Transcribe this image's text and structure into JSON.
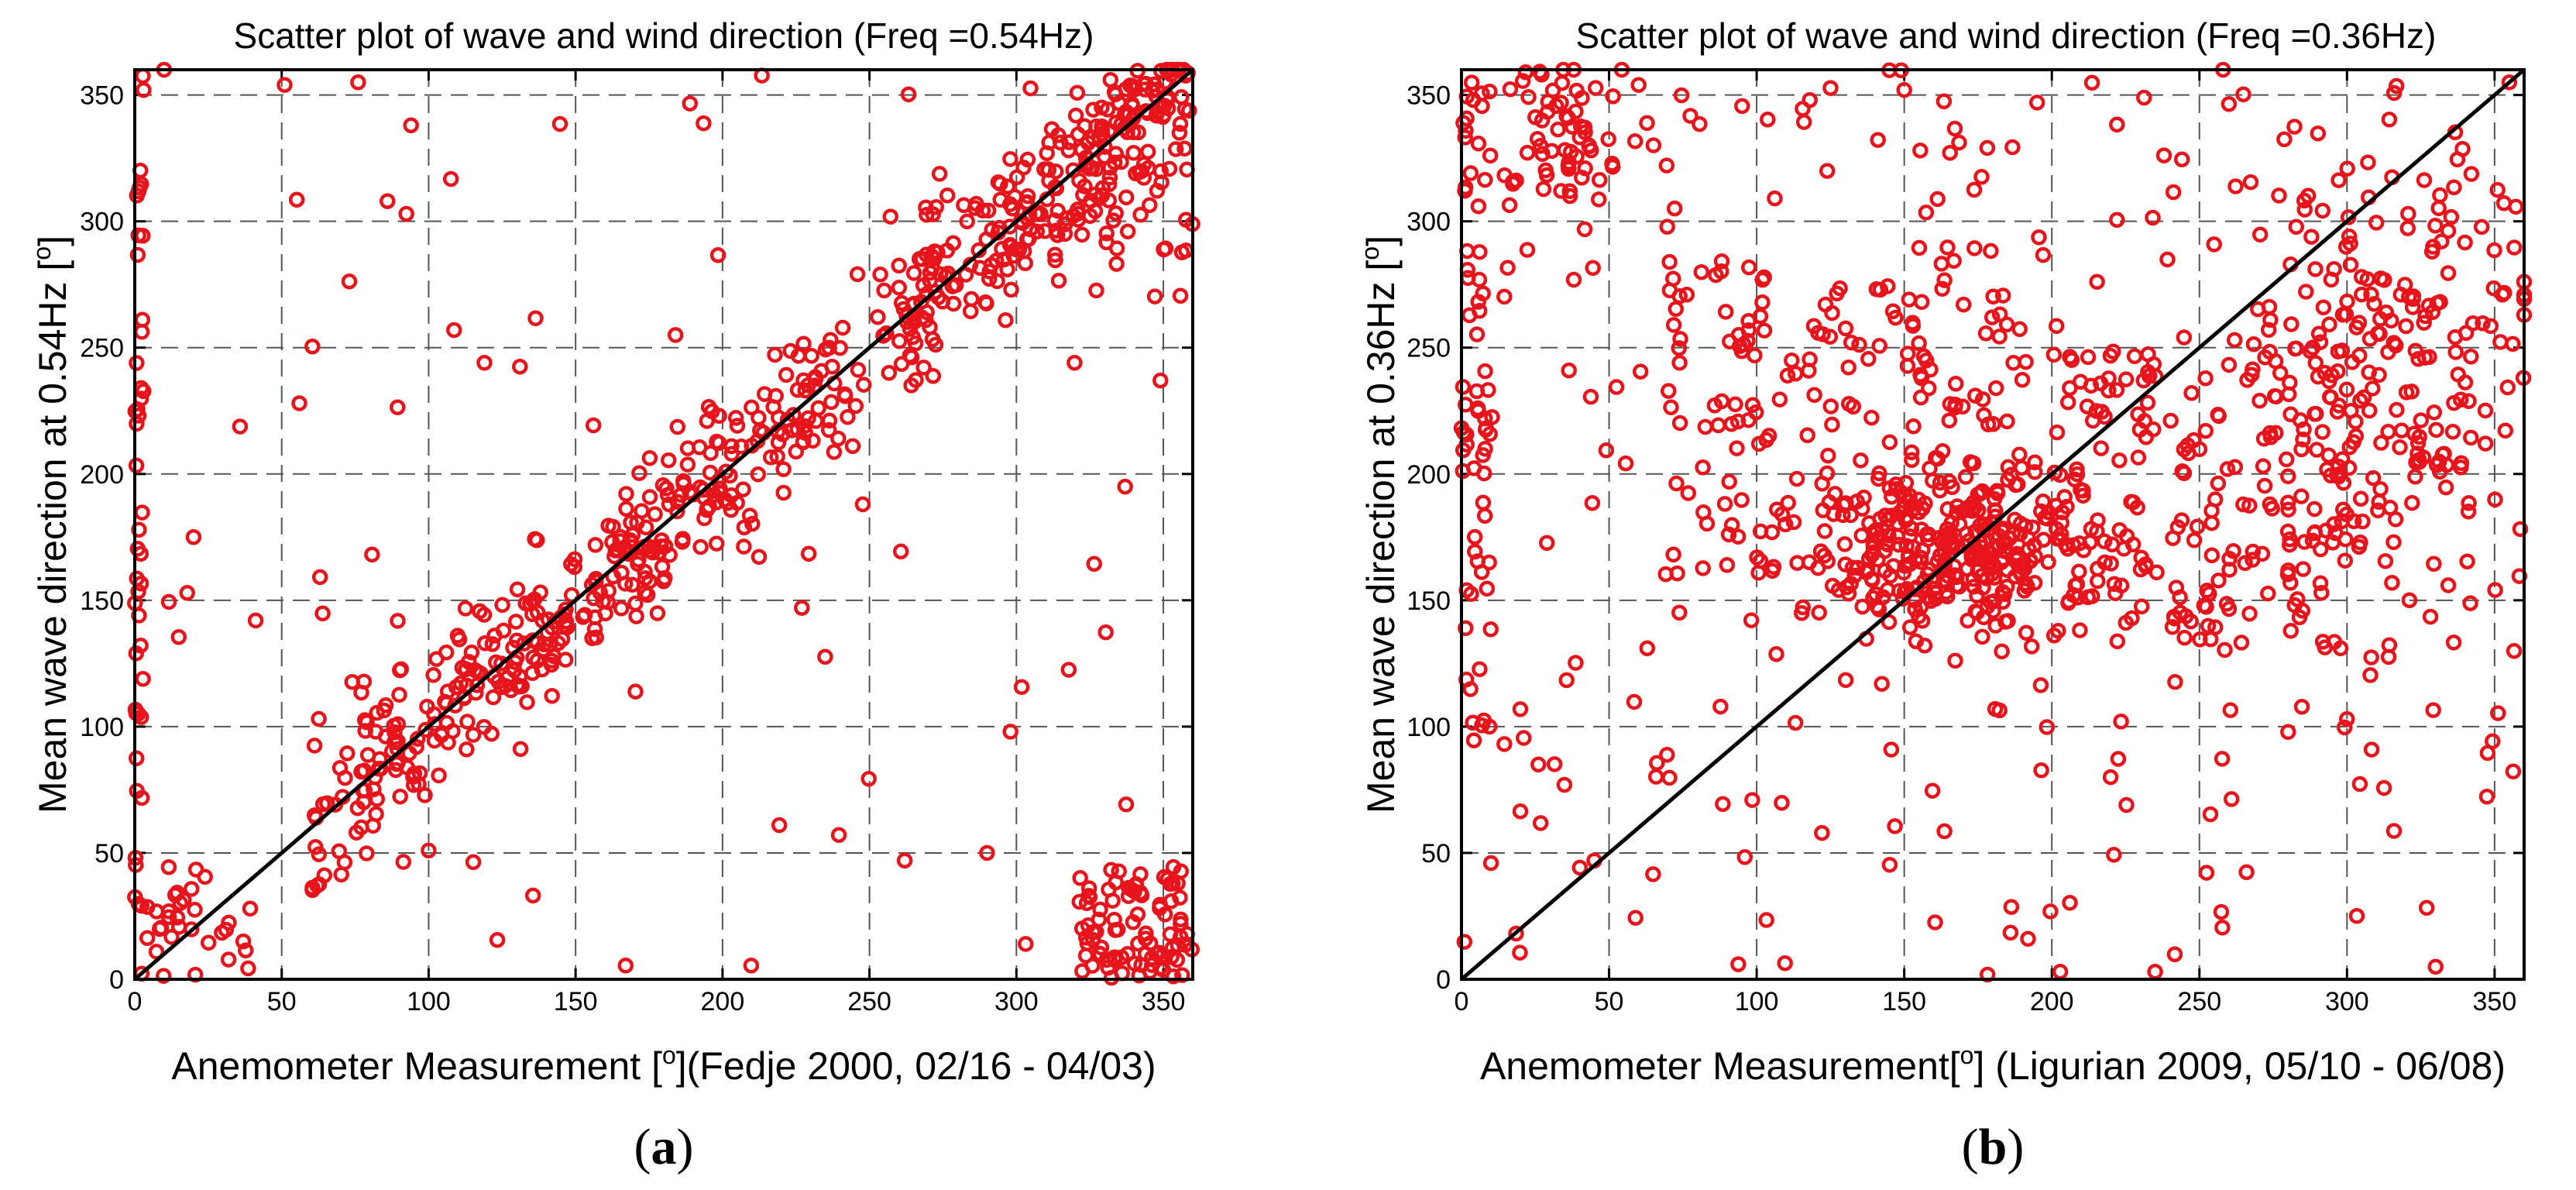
{
  "colors": {
    "marker": "#e8141c",
    "line": "#000000",
    "grid": "#555555"
  },
  "chart_data": [
    {
      "type": "scatter",
      "panel_label": "a",
      "title": "Scatter plot of wave and wind direction (Freq =0.54Hz)",
      "xlabel_main": "Anemometer Measurement [",
      "xlabel_sup": "o",
      "xlabel_tail": "](Fedje 2000, 02/16 - 04/03)",
      "ylabel_main": "Mean wave direction at 0.54Hz [",
      "ylabel_sup": "o",
      "ylabel_tail": "]",
      "xlim": [
        0,
        360
      ],
      "ylim": [
        0,
        360
      ],
      "xticks": [
        0,
        50,
        100,
        150,
        200,
        250,
        300,
        350
      ],
      "yticks": [
        0,
        50,
        100,
        150,
        200,
        250,
        300,
        350
      ],
      "grid": true,
      "reference_line": {
        "x": [
          0,
          360
        ],
        "y": [
          0,
          360
        ]
      },
      "seed": 54,
      "clusters": [
        {
          "kind": "diag",
          "n": 620,
          "xmin": 60,
          "xmax": 360,
          "spread": 16
        },
        {
          "kind": "box",
          "n": 90,
          "x": [
            320,
            360
          ],
          "y": [
            0,
            45
          ]
        },
        {
          "kind": "box",
          "n": 45,
          "x": [
            0,
            3
          ],
          "y": [
            0,
            360
          ]
        },
        {
          "kind": "box",
          "n": 30,
          "x": [
            0,
            40
          ],
          "y": [
            0,
            45
          ]
        },
        {
          "kind": "box",
          "n": 45,
          "x": [
            320,
            360
          ],
          "y": [
            270,
            360
          ]
        },
        {
          "kind": "uniform",
          "n": 60
        }
      ],
      "points_sample": [
        {
          "x": 20,
          "y": 175
        },
        {
          "x": 56,
          "y": 228
        },
        {
          "x": 86,
          "y": 308
        },
        {
          "x": 94,
          "y": 338
        },
        {
          "x": 76,
          "y": 355
        },
        {
          "x": 119,
          "y": 244
        },
        {
          "x": 184,
          "y": 255
        },
        {
          "x": 227,
          "y": 147
        },
        {
          "x": 262,
          "y": 47
        },
        {
          "x": 290,
          "y": 50
        },
        {
          "x": 298,
          "y": 98
        },
        {
          "x": 337,
          "y": 195
        },
        {
          "x": 349,
          "y": 237
        },
        {
          "x": 100,
          "y": 51
        },
        {
          "x": 51,
          "y": 354
        },
        {
          "x": 10,
          "y": 360
        },
        {
          "x": 3,
          "y": 352
        }
      ]
    },
    {
      "type": "scatter",
      "panel_label": "b",
      "title": "Scatter plot of wave and wind direction (Freq =0.36Hz)",
      "xlabel_main": "Anemometer Measurement[",
      "xlabel_sup": "o",
      "xlabel_tail": "] (Ligurian 2009, 05/10 - 06/08)",
      "ylabel_main": "Mean wave direction at 0.36Hz [",
      "ylabel_sup": "o",
      "ylabel_tail": "]",
      "xlim": [
        0,
        360
      ],
      "ylim": [
        0,
        360
      ],
      "xticks": [
        0,
        50,
        100,
        150,
        200,
        250,
        300,
        350
      ],
      "yticks": [
        0,
        50,
        100,
        150,
        200,
        250,
        300,
        350
      ],
      "grid": true,
      "reference_line": {
        "x": [
          0,
          360
        ],
        "y": [
          0,
          360
        ]
      },
      "seed": 36,
      "clusters": [
        {
          "kind": "gauss",
          "n": 300,
          "cx": 165,
          "cy": 170,
          "sx": 24,
          "sy": 18
        },
        {
          "kind": "gauss",
          "n": 200,
          "cx": 310,
          "cy": 240,
          "sx": 24,
          "sy": 40
        },
        {
          "kind": "box",
          "n": 160,
          "x": [
            70,
            190
          ],
          "y": [
            160,
            290
          ]
        },
        {
          "kind": "gauss",
          "n": 60,
          "cx": 35,
          "cy": 335,
          "sx": 12,
          "sy": 18
        },
        {
          "kind": "box",
          "n": 180,
          "x": [
            200,
            300
          ],
          "y": [
            130,
            250
          ]
        },
        {
          "kind": "uniform",
          "n": 250
        },
        {
          "kind": "box",
          "n": 60,
          "x": [
            0,
            10
          ],
          "y": [
            100,
            360
          ]
        }
      ],
      "points_sample": [
        {
          "x": 4,
          "y": 348
        },
        {
          "x": 60,
          "y": 354
        },
        {
          "x": 195,
          "y": 347
        },
        {
          "x": 258,
          "y": 360
        },
        {
          "x": 330,
          "y": 5
        },
        {
          "x": 235,
          "y": 3
        },
        {
          "x": 150,
          "y": 352
        },
        {
          "x": 10,
          "y": 46
        },
        {
          "x": 45,
          "y": 47
        },
        {
          "x": 118,
          "y": 348
        },
        {
          "x": 355,
          "y": 355
        },
        {
          "x": 300,
          "y": 103
        }
      ]
    }
  ]
}
